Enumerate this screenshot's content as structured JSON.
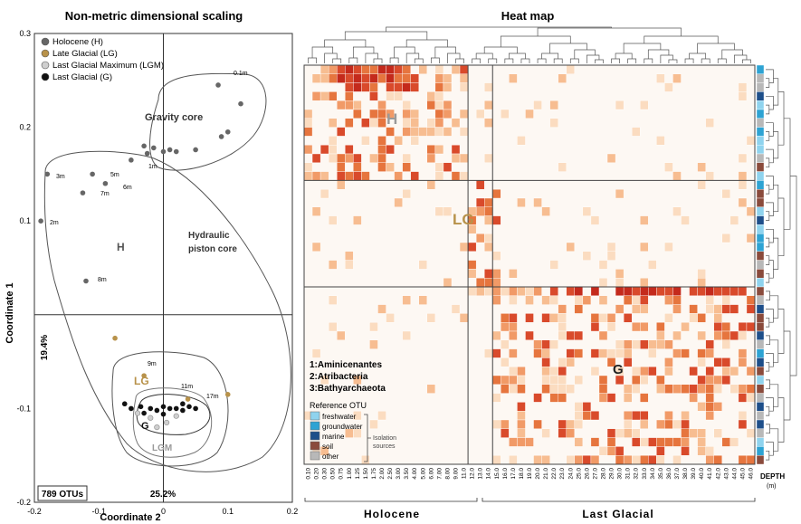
{
  "chart_data": [
    {
      "type": "scatter",
      "title": "Non-metric dimensional scaling",
      "xlabel": "Coordinate 2",
      "ylabel": "Coordinate 1",
      "xlim": [
        -0.2,
        0.2
      ],
      "ylim": [
        -0.2,
        0.3
      ],
      "xticks": [
        "-0.2",
        "-0.1",
        "0",
        "0.1",
        "0.2"
      ],
      "yticks": [
        "0.3",
        "0.2",
        "0.1",
        "-0.1",
        "-0.2"
      ],
      "x_variance": "25.2%",
      "y_variance": "19.4%",
      "otu_count": "789 OTUs",
      "legend_position": "top-left",
      "legend": [
        {
          "label": "Holocene (H)",
          "color": "#666666"
        },
        {
          "label": "Late Glacial (LG)",
          "color": "#b8924a"
        },
        {
          "label": "Last Glacial Maximum (LGM)",
          "color": "#cfcfcf"
        },
        {
          "label": "Last Glacial (G)",
          "color": "#111111"
        }
      ],
      "group_labels": {
        "H": "H",
        "LG": "LG",
        "G": "G",
        "LGM": "LGM",
        "gravity": "Gravity core",
        "hydraulic1": "Hydraulic",
        "hydraulic2": "piston core"
      },
      "annotations": [
        "0.1m",
        "1m",
        "3m",
        "5m",
        "6m",
        "7m",
        "2m",
        "8m",
        "9m",
        "11m",
        "17m"
      ],
      "series": [
        {
          "name": "Holocene (H)",
          "points": [
            [
              0.085,
              0.245
            ],
            [
              0.12,
              0.225
            ],
            [
              0.1,
              0.195
            ],
            [
              -0.03,
              0.18
            ],
            [
              -0.015,
              0.178
            ],
            [
              0.0,
              0.174
            ],
            [
              0.01,
              0.176
            ],
            [
              0.02,
              0.174
            ],
            [
              0.05,
              0.176
            ],
            [
              0.09,
              0.19
            ],
            [
              -0.025,
              0.172
            ],
            [
              -0.05,
              0.165
            ],
            [
              -0.18,
              0.15
            ],
            [
              -0.11,
              0.15
            ],
            [
              -0.09,
              0.14
            ],
            [
              -0.125,
              0.13
            ],
            [
              -0.19,
              0.1
            ],
            [
              -0.12,
              0.036
            ]
          ]
        },
        {
          "name": "Late Glacial (LG)",
          "points": [
            [
              -0.075,
              -0.025
            ],
            [
              -0.03,
              -0.065
            ],
            [
              0.038,
              -0.09
            ],
            [
              0.1,
              -0.085
            ]
          ]
        },
        {
          "name": "Last Glacial Maximum (LGM)",
          "points": [
            [
              -0.04,
              -0.105
            ],
            [
              -0.02,
              -0.11
            ],
            [
              0.005,
              -0.115
            ],
            [
              -0.01,
              -0.12
            ],
            [
              0.02,
              -0.108
            ]
          ]
        },
        {
          "name": "Last Glacial (G)",
          "points": [
            [
              -0.06,
              -0.095
            ],
            [
              -0.05,
              -0.1
            ],
            [
              -0.035,
              -0.098
            ],
            [
              -0.02,
              -0.1
            ],
            [
              -0.01,
              -0.102
            ],
            [
              0.0,
              -0.098
            ],
            [
              0.01,
              -0.1
            ],
            [
              0.02,
              -0.1
            ],
            [
              0.03,
              -0.102
            ],
            [
              0.04,
              -0.098
            ],
            [
              0.05,
              -0.1
            ],
            [
              -0.03,
              -0.105
            ],
            [
              0.0,
              -0.106
            ],
            [
              0.03,
              -0.095
            ]
          ]
        }
      ]
    },
    {
      "type": "heatmap",
      "title": "Heat map",
      "group_labels": {
        "H": "H",
        "LG": "LG",
        "G": "G"
      },
      "x_group_labels": [
        "Holocene",
        "Last Glacial"
      ],
      "depth_label": "DEPTH",
      "depth_unit": "(m)",
      "column_labels": [
        "0.10",
        "0.20",
        "0.30",
        "0.50",
        "0.75",
        "1.00",
        "1.25",
        "1.50",
        "1.75",
        "2.00",
        "2.50",
        "3.00",
        "3.50",
        "4.00",
        "5.00",
        "6.00",
        "7.00",
        "8.00",
        "9.00",
        "11.0",
        "12.0",
        "13.0",
        "14.0",
        "15.0",
        "16.0",
        "17.0",
        "18.0",
        "19.0",
        "20.0",
        "21.0",
        "22.0",
        "23.0",
        "24.0",
        "25.0",
        "26.0",
        "27.0",
        "28.0",
        "29.0",
        "30.0",
        "31.0",
        "32.0",
        "33.0",
        "34.0",
        "35.0",
        "36.0",
        "37.0",
        "38.0",
        "39.0",
        "40.0",
        "41.0",
        "42.0",
        "43.0",
        "44.0",
        "45.0",
        "46.0"
      ],
      "reference_title": "Reference OTU",
      "reference_items": [
        {
          "label": "freshwater",
          "color": "#8fd3ee"
        },
        {
          "label": "groundwater",
          "color": "#2ea3d3"
        },
        {
          "label": "marine",
          "color": "#1e4f8a"
        },
        {
          "label": "soil",
          "color": "#8a4b3c"
        },
        {
          "label": "other",
          "color": "#b8b8b8"
        }
      ],
      "isolation_label_1": "Isolation",
      "isolation_label_2": "sources",
      "taxa": [
        "1:Aminicenantes",
        "2:Atribacteria",
        "3:Bathyarchaeota"
      ],
      "color_scale": [
        "#fdf3ea",
        "#fbdcc0",
        "#f7bd91",
        "#f19a67",
        "#e6753e",
        "#d94a2b",
        "#c42a1c"
      ]
    }
  ]
}
